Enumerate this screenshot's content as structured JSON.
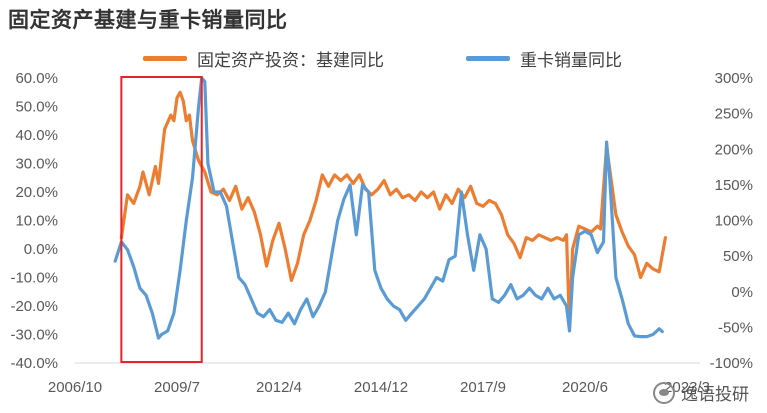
{
  "chart_data": {
    "type": "line",
    "title": "固定资产基建与重卡销量同比",
    "x_ticks": [
      "2006/10",
      "2009/7",
      "2012/4",
      "2014/12",
      "2017/9",
      "2020/6",
      "2023/3"
    ],
    "y_left": {
      "min": -0.4,
      "max": 0.6,
      "ticks": [
        "60.0%",
        "50.0%",
        "40.0%",
        "30.0%",
        "20.0%",
        "10.0%",
        "0.0%",
        "-10.0%",
        "-20.0%",
        "-30.0%",
        "-40.0%"
      ]
    },
    "y_right": {
      "min": -1.0,
      "max": 3.0,
      "ticks": [
        "300%",
        "250%",
        "200%",
        "150%",
        "100%",
        "50%",
        "0%",
        "-50%",
        "-100%"
      ]
    },
    "highlight_box": {
      "x_start": "2008-01",
      "x_end": "2010-03",
      "color": "#e8232a"
    },
    "series": [
      {
        "name": "固定资产投资：基建同比",
        "axis": "left",
        "color": "#ed7d31",
        "points": [
          [
            "2008-01",
            0.04
          ],
          [
            "2008-03",
            0.19
          ],
          [
            "2008-05",
            0.16
          ],
          [
            "2008-07",
            0.22
          ],
          [
            "2008-08",
            0.27
          ],
          [
            "2008-10",
            0.19
          ],
          [
            "2008-12",
            0.29
          ],
          [
            "2009-01",
            0.23
          ],
          [
            "2009-03",
            0.42
          ],
          [
            "2009-05",
            0.47
          ],
          [
            "2009-06",
            0.45
          ],
          [
            "2009-07",
            0.53
          ],
          [
            "2009-08",
            0.55
          ],
          [
            "2009-09",
            0.52
          ],
          [
            "2009-10",
            0.45
          ],
          [
            "2009-11",
            0.47
          ],
          [
            "2009-12",
            0.38
          ],
          [
            "2010-02",
            0.31
          ],
          [
            "2010-04",
            0.27
          ],
          [
            "2010-06",
            0.2
          ],
          [
            "2010-08",
            0.19
          ],
          [
            "2010-10",
            0.21
          ],
          [
            "2010-12",
            0.17
          ],
          [
            "2011-02",
            0.22
          ],
          [
            "2011-04",
            0.14
          ],
          [
            "2011-06",
            0.18
          ],
          [
            "2011-08",
            0.13
          ],
          [
            "2011-10",
            0.05
          ],
          [
            "2011-12",
            -0.06
          ],
          [
            "2012-02",
            0.03
          ],
          [
            "2012-04",
            0.09
          ],
          [
            "2012-06",
            0.0
          ],
          [
            "2012-08",
            -0.11
          ],
          [
            "2012-10",
            -0.05
          ],
          [
            "2012-12",
            0.05
          ],
          [
            "2013-02",
            0.1
          ],
          [
            "2013-04",
            0.17
          ],
          [
            "2013-06",
            0.26
          ],
          [
            "2013-08",
            0.22
          ],
          [
            "2013-10",
            0.26
          ],
          [
            "2013-12",
            0.24
          ],
          [
            "2014-02",
            0.26
          ],
          [
            "2014-04",
            0.23
          ],
          [
            "2014-06",
            0.26
          ],
          [
            "2014-08",
            0.21
          ],
          [
            "2014-10",
            0.19
          ],
          [
            "2014-12",
            0.21
          ],
          [
            "2015-02",
            0.24
          ],
          [
            "2015-04",
            0.19
          ],
          [
            "2015-06",
            0.21
          ],
          [
            "2015-08",
            0.18
          ],
          [
            "2015-10",
            0.19
          ],
          [
            "2015-12",
            0.17
          ],
          [
            "2016-02",
            0.2
          ],
          [
            "2016-04",
            0.18
          ],
          [
            "2016-06",
            0.2
          ],
          [
            "2016-08",
            0.14
          ],
          [
            "2016-10",
            0.19
          ],
          [
            "2016-12",
            0.16
          ],
          [
            "2017-02",
            0.21
          ],
          [
            "2017-04",
            0.18
          ],
          [
            "2017-06",
            0.22
          ],
          [
            "2017-08",
            0.16
          ],
          [
            "2017-10",
            0.15
          ],
          [
            "2017-12",
            0.17
          ],
          [
            "2018-02",
            0.16
          ],
          [
            "2018-04",
            0.12
          ],
          [
            "2018-06",
            0.05
          ],
          [
            "2018-08",
            0.02
          ],
          [
            "2018-10",
            -0.03
          ],
          [
            "2018-12",
            0.04
          ],
          [
            "2019-02",
            0.03
          ],
          [
            "2019-04",
            0.05
          ],
          [
            "2019-06",
            0.04
          ],
          [
            "2019-08",
            0.03
          ],
          [
            "2019-10",
            0.04
          ],
          [
            "2019-12",
            0.03
          ],
          [
            "2020-01",
            0.05
          ],
          [
            "2020-02",
            -0.27
          ],
          [
            "2020-03",
            0.0
          ],
          [
            "2020-05",
            0.08
          ],
          [
            "2020-07",
            0.07
          ],
          [
            "2020-09",
            0.06
          ],
          [
            "2020-11",
            0.08
          ],
          [
            "2020-12",
            0.07
          ],
          [
            "2021-02",
            0.36
          ],
          [
            "2021-03",
            0.28
          ],
          [
            "2021-05",
            0.12
          ],
          [
            "2021-07",
            0.06
          ],
          [
            "2021-09",
            0.01
          ],
          [
            "2021-11",
            -0.02
          ],
          [
            "2022-01",
            -0.1
          ],
          [
            "2022-03",
            -0.05
          ],
          [
            "2022-05",
            -0.07
          ],
          [
            "2022-07",
            -0.08
          ],
          [
            "2022-09",
            0.04
          ]
        ]
      },
      {
        "name": "重卡销量同比",
        "axis": "right",
        "color": "#5b9bd5",
        "points": [
          [
            "2007-11",
            0.43
          ],
          [
            "2008-01",
            0.7
          ],
          [
            "2008-03",
            0.59
          ],
          [
            "2008-05",
            0.35
          ],
          [
            "2008-07",
            0.05
          ],
          [
            "2008-09",
            -0.05
          ],
          [
            "2008-11",
            -0.3
          ],
          [
            "2009-01",
            -0.65
          ],
          [
            "2009-02",
            -0.6
          ],
          [
            "2009-04",
            -0.55
          ],
          [
            "2009-06",
            -0.3
          ],
          [
            "2009-08",
            0.3
          ],
          [
            "2009-10",
            1.0
          ],
          [
            "2009-12",
            1.6
          ],
          [
            "2010-02",
            2.6
          ],
          [
            "2010-03",
            3.0
          ],
          [
            "2010-04",
            2.95
          ],
          [
            "2010-05",
            1.8
          ],
          [
            "2010-07",
            1.4
          ],
          [
            "2010-09",
            1.4
          ],
          [
            "2010-11",
            1.2
          ],
          [
            "2011-01",
            0.7
          ],
          [
            "2011-03",
            0.2
          ],
          [
            "2011-05",
            0.1
          ],
          [
            "2011-07",
            -0.1
          ],
          [
            "2011-09",
            -0.3
          ],
          [
            "2011-11",
            -0.35
          ],
          [
            "2012-01",
            -0.25
          ],
          [
            "2012-03",
            -0.4
          ],
          [
            "2012-05",
            -0.43
          ],
          [
            "2012-07",
            -0.3
          ],
          [
            "2012-09",
            -0.45
          ],
          [
            "2012-11",
            -0.25
          ],
          [
            "2013-01",
            -0.1
          ],
          [
            "2013-03",
            -0.35
          ],
          [
            "2013-05",
            -0.2
          ],
          [
            "2013-07",
            0.0
          ],
          [
            "2013-09",
            0.5
          ],
          [
            "2013-11",
            1.0
          ],
          [
            "2014-01",
            1.3
          ],
          [
            "2014-03",
            1.5
          ],
          [
            "2014-05",
            0.8
          ],
          [
            "2014-07",
            1.5
          ],
          [
            "2014-09",
            1.4
          ],
          [
            "2014-11",
            0.3
          ],
          [
            "2015-01",
            0.05
          ],
          [
            "2015-03",
            -0.1
          ],
          [
            "2015-05",
            -0.2
          ],
          [
            "2015-07",
            -0.25
          ],
          [
            "2015-09",
            -0.4
          ],
          [
            "2015-11",
            -0.3
          ],
          [
            "2016-01",
            -0.2
          ],
          [
            "2016-03",
            -0.1
          ],
          [
            "2016-05",
            0.05
          ],
          [
            "2016-07",
            0.2
          ],
          [
            "2016-09",
            0.15
          ],
          [
            "2016-11",
            0.45
          ],
          [
            "2017-01",
            0.5
          ],
          [
            "2017-03",
            1.4
          ],
          [
            "2017-05",
            0.8
          ],
          [
            "2017-07",
            0.3
          ],
          [
            "2017-09",
            0.8
          ],
          [
            "2017-11",
            0.6
          ],
          [
            "2018-01",
            -0.1
          ],
          [
            "2018-03",
            -0.15
          ],
          [
            "2018-05",
            -0.05
          ],
          [
            "2018-07",
            0.1
          ],
          [
            "2018-09",
            -0.1
          ],
          [
            "2018-11",
            -0.05
          ],
          [
            "2019-01",
            0.05
          ],
          [
            "2019-03",
            -0.05
          ],
          [
            "2019-05",
            -0.1
          ],
          [
            "2019-07",
            0.05
          ],
          [
            "2019-09",
            -0.1
          ],
          [
            "2019-11",
            -0.05
          ],
          [
            "2020-01",
            -0.2
          ],
          [
            "2020-02",
            -0.55
          ],
          [
            "2020-03",
            0.2
          ],
          [
            "2020-05",
            0.8
          ],
          [
            "2020-07",
            0.85
          ],
          [
            "2020-09",
            0.8
          ],
          [
            "2020-11",
            0.55
          ],
          [
            "2021-01",
            0.7
          ],
          [
            "2021-02",
            2.1
          ],
          [
            "2021-03",
            1.6
          ],
          [
            "2021-05",
            0.2
          ],
          [
            "2021-07",
            -0.1
          ],
          [
            "2021-09",
            -0.45
          ],
          [
            "2021-11",
            -0.62
          ],
          [
            "2022-01",
            -0.63
          ],
          [
            "2022-03",
            -0.63
          ],
          [
            "2022-05",
            -0.6
          ],
          [
            "2022-07",
            -0.52
          ],
          [
            "2022-08",
            -0.56
          ]
        ]
      }
    ]
  },
  "watermark": {
    "text": "逸语投研",
    "icon": "wechat-icon"
  }
}
